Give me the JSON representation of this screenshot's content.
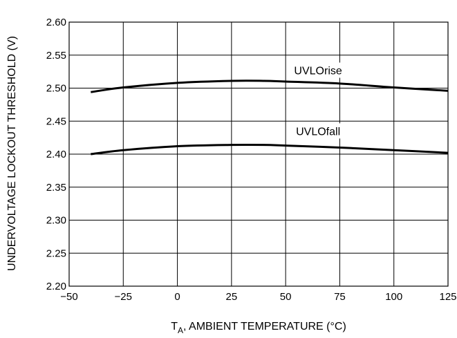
{
  "chart_data": {
    "type": "line",
    "xlabel_main": "T",
    "xlabel_sub": "A",
    "xlabel_rest": ", AMBIENT TEMPERATURE (°C)",
    "ylabel": "UNDERVOLTAGE LOCKOUT THRESHOLD (V)",
    "xlim": [
      -50,
      125
    ],
    "ylim": [
      2.2,
      2.6
    ],
    "x_ticks": [
      -50,
      -25,
      0,
      25,
      50,
      75,
      100,
      125
    ],
    "x_tick_labels": [
      "−50",
      "−25",
      "0",
      "25",
      "50",
      "75",
      "100",
      "125"
    ],
    "y_ticks": [
      2.2,
      2.25,
      2.3,
      2.35,
      2.4,
      2.45,
      2.5,
      2.55,
      2.6
    ],
    "y_tick_labels": [
      "2.20",
      "2.25",
      "2.30",
      "2.35",
      "2.40",
      "2.45",
      "2.50",
      "2.55",
      "2.60"
    ],
    "grid": true,
    "series": [
      {
        "name": "UVLOrise",
        "x": [
          -40,
          -25,
          0,
          25,
          40,
          50,
          75,
          100,
          125
        ],
        "y": [
          2.494,
          2.501,
          2.508,
          2.511,
          2.511,
          2.51,
          2.507,
          2.501,
          2.496
        ]
      },
      {
        "name": "UVLOfall",
        "x": [
          -40,
          -25,
          0,
          25,
          40,
          50,
          75,
          100,
          125
        ],
        "y": [
          2.4,
          2.406,
          2.412,
          2.414,
          2.414,
          2.413,
          2.41,
          2.406,
          2.402
        ]
      }
    ],
    "series_label_pos": [
      {
        "x": 65,
        "y": 2.523
      },
      {
        "x": 65,
        "y": 2.431
      }
    ]
  }
}
